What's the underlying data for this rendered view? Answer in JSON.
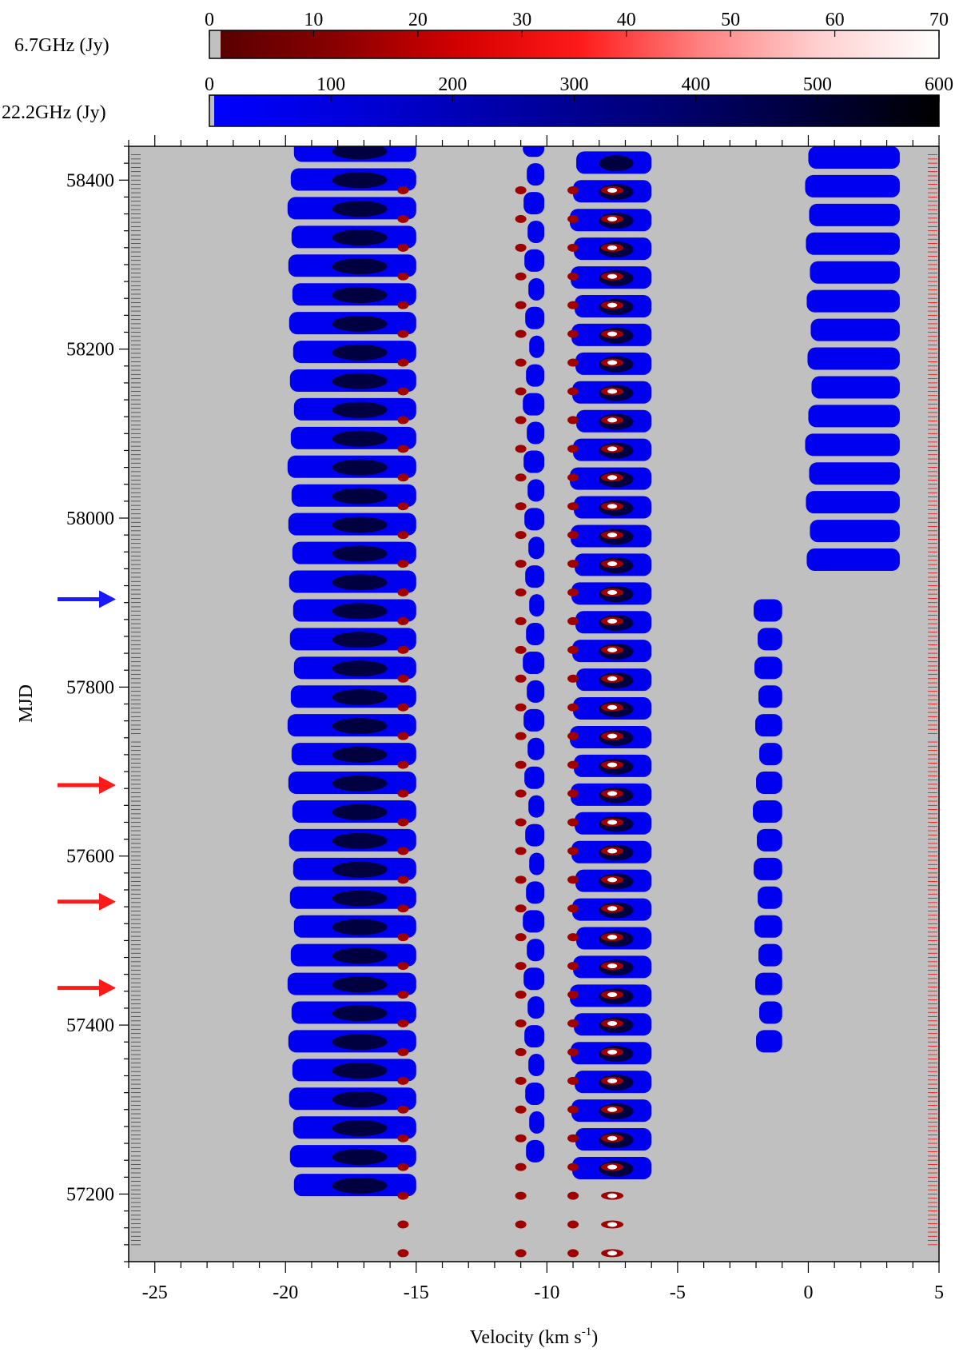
{
  "chart_data": {
    "type": "heatmap",
    "title": "",
    "xlabel": "Velocity (km s",
    "xlabel_sup": "-1",
    "xlabel_close": ")",
    "ylabel": "MJD",
    "xlim": [
      -26,
      5
    ],
    "ylim": [
      57120,
      58440
    ],
    "x_ticks": [
      -25,
      -20,
      -15,
      -10,
      -5,
      0,
      5
    ],
    "x_tick_labels": [
      "-25",
      "-20",
      "-15",
      "-10",
      "-5",
      "0",
      "5"
    ],
    "y_ticks": [
      57200,
      57400,
      57600,
      57800,
      58000,
      58200,
      58400
    ],
    "y_tick_labels": [
      "57200",
      "57400",
      "57600",
      "57800",
      "58000",
      "58200",
      "58400"
    ],
    "background_color": "#c0c0c0",
    "colorbars": [
      {
        "label": "6.7GHz  (Jy)",
        "min": 0,
        "max": 70,
        "ticks": [
          0,
          10,
          20,
          30,
          40,
          50,
          60,
          70
        ],
        "tick_labels": [
          "0",
          "10",
          "20",
          "30",
          "40",
          "50",
          "60",
          "70"
        ],
        "colors": [
          "#5a0000",
          "#8b0000",
          "#d40000",
          "#ff1a1a",
          "#ff8080",
          "#ffd0d0",
          "#ffffff"
        ]
      },
      {
        "label": "22.2GHz (Jy)",
        "min": 0,
        "max": 600,
        "ticks": [
          0,
          100,
          200,
          300,
          400,
          500,
          600
        ],
        "tick_labels": [
          "0",
          "100",
          "200",
          "300",
          "400",
          "500",
          "600"
        ],
        "colors": [
          "#0000ff",
          "#0000d8",
          "#0000a8",
          "#000078",
          "#000040",
          "#000000"
        ]
      }
    ],
    "methanol_6_7GHz_features": [
      {
        "velocity": -15.5,
        "color": "#a00000"
      },
      {
        "velocity": -11.0,
        "color": "#a00000"
      },
      {
        "velocity": -9.0,
        "color": "#a00000"
      },
      {
        "velocity": -7.5,
        "color": "#ffffff"
      }
    ],
    "water_22_2GHz_mjd_epochs": [
      {
        "start": 57200,
        "end": 58440,
        "v_min": -19.8,
        "v_max": -15.0,
        "peak": 500
      },
      {
        "start": 57240,
        "end": 58440,
        "v_min": -10.8,
        "v_max": -10.1,
        "peak": 50
      },
      {
        "start": 57220,
        "end": 58440,
        "v_min": -9.0,
        "v_max": -6.0,
        "peak": 250
      },
      {
        "start": 57370,
        "end": 57890,
        "v_min": -2.0,
        "v_max": -1.0,
        "peak": 10
      },
      {
        "start": 57940,
        "end": 58440,
        "v_min": 0.0,
        "v_max": 3.5,
        "peak": 20
      }
    ],
    "arrows": [
      {
        "mjd": 57904,
        "color": "#1a1aff"
      },
      {
        "mjd": 57684,
        "color": "#ff1a1a"
      },
      {
        "mjd": 57546,
        "color": "#ff1a1a"
      },
      {
        "mjd": 57444,
        "color": "#ff1a1a"
      }
    ]
  }
}
